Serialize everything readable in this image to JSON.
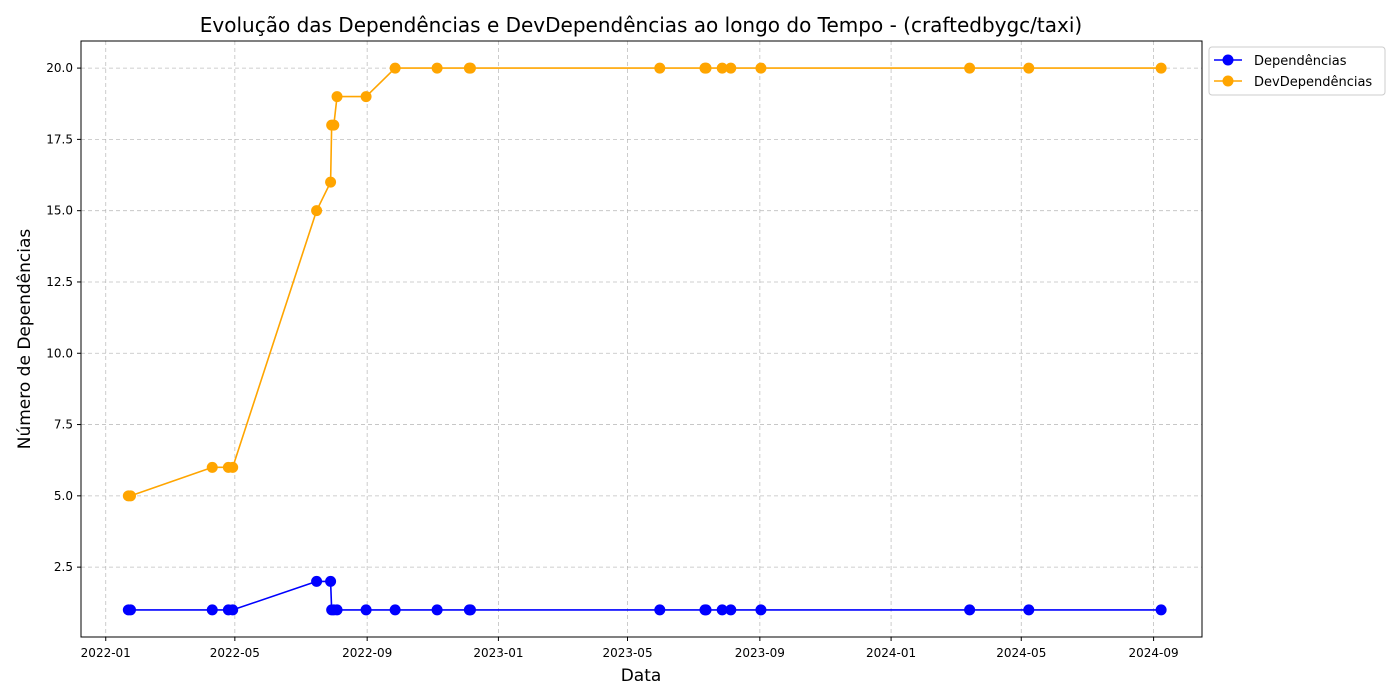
{
  "chart_data": {
    "type": "line",
    "title": "Evolução das Dependências e DevDependências ao longo do Tempo - (craftedbygc/taxi)",
    "xlabel": "Data",
    "ylabel": "Número de Dependências",
    "x_ticks": [
      "2022-01",
      "2022-05",
      "2022-09",
      "2023-01",
      "2023-05",
      "2023-09",
      "2024-01",
      "2024-05",
      "2024-09"
    ],
    "y_ticks": [
      "2.5",
      "5.0",
      "7.5",
      "10.0",
      "12.5",
      "15.0",
      "17.5",
      "20.0"
    ],
    "xlim": [
      "2021-12-09",
      "2024-10-16"
    ],
    "ylim": [
      0.05,
      20.95
    ],
    "grid": true,
    "legend_position": "outside top-right",
    "x": [
      "2022-01-22",
      "2022-01-24",
      "2022-04-10",
      "2022-04-25",
      "2022-04-29",
      "2022-07-16",
      "2022-07-29",
      "2022-07-30",
      "2022-08-01",
      "2022-08-04",
      "2022-08-31",
      "2022-09-27",
      "2022-11-05",
      "2022-12-05",
      "2022-12-06",
      "2023-05-31",
      "2023-07-12",
      "2023-07-13",
      "2023-07-28",
      "2023-08-05",
      "2023-09-02",
      "2024-03-14",
      "2024-05-08",
      "2024-09-08"
    ],
    "series": [
      {
        "name": "Dependências",
        "color": "#0000ff",
        "values": [
          1,
          1,
          1,
          1,
          1,
          2,
          2,
          1,
          1,
          1,
          1,
          1,
          1,
          1,
          1,
          1,
          1,
          1,
          1,
          1,
          1,
          1,
          1,
          1
        ]
      },
      {
        "name": "DevDependências",
        "color": "#ffa500",
        "values": [
          5,
          5,
          6,
          6,
          6,
          15,
          16,
          18,
          18,
          19,
          19,
          20,
          20,
          20,
          20,
          20,
          20,
          20,
          20,
          20,
          20,
          20,
          20,
          20
        ]
      }
    ]
  }
}
